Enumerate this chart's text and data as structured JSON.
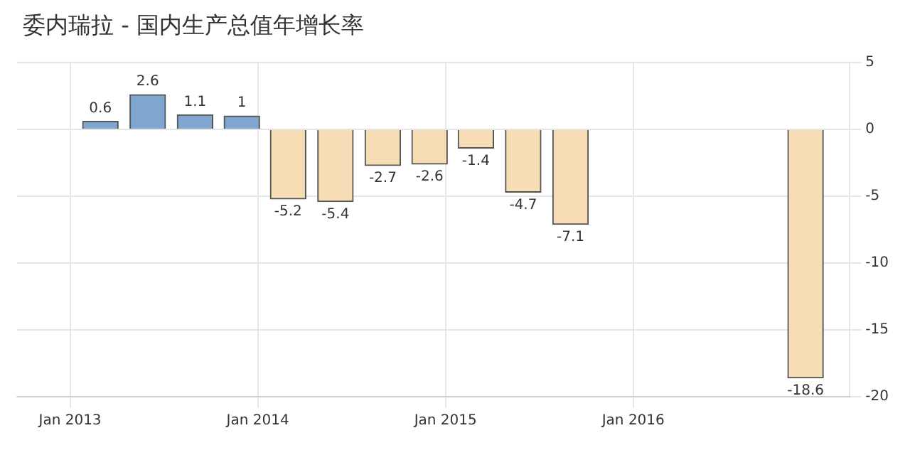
{
  "chart_data": {
    "type": "bar",
    "title": "委内瑞拉 - 国内生产总值年增长率",
    "x": [
      "2013-03",
      "2013-06",
      "2013-09",
      "2013-12",
      "2014-03",
      "2014-06",
      "2014-09",
      "2014-12",
      "2015-03",
      "2015-06",
      "2015-09",
      "2016-12"
    ],
    "values": [
      0.6,
      2.6,
      1.1,
      1,
      -5.2,
      -5.4,
      -2.7,
      -2.6,
      -1.4,
      -4.7,
      -7.1,
      -18.6
    ],
    "colors": [
      "#7fa6cf",
      "#7fa6cf",
      "#7fa6cf",
      "#7fa6cf",
      "#f6ddb5",
      "#f6ddb5",
      "#f6ddb5",
      "#f6ddb5",
      "#f6ddb5",
      "#f6ddb5",
      "#f6ddb5",
      "#f6ddb5"
    ],
    "xlim": [
      "2012-09-20",
      "2017-02-25"
    ],
    "xticks": [
      {
        "value": "2013-01",
        "label": "Jan 2013"
      },
      {
        "value": "2014-01",
        "label": "Jan 2014"
      },
      {
        "value": "2015-01",
        "label": "Jan 2015"
      },
      {
        "value": "2016-01",
        "label": "Jan 2016"
      }
    ],
    "ylim": [
      -20,
      5
    ],
    "yticks": [
      5,
      0,
      -5,
      -10,
      -15,
      -20
    ],
    "grid": true,
    "data_labels": true
  }
}
